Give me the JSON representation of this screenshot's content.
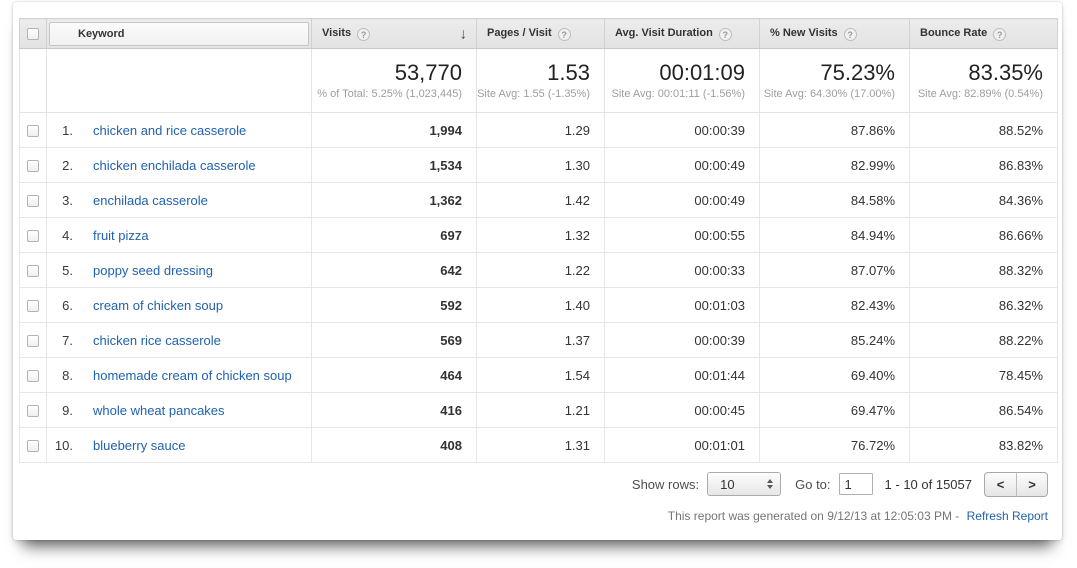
{
  "colors": {
    "link_blue": "#2062b0",
    "header_bg": "#e6e6e6"
  },
  "table": {
    "columns": {
      "keyword": {
        "label": "Keyword"
      },
      "visits": {
        "label": "Visits"
      },
      "pages_visit": {
        "label": "Pages / Visit"
      },
      "avg_duration": {
        "label": "Avg. Visit Duration"
      },
      "new_visits": {
        "label": "% New Visits"
      },
      "bounce_rate": {
        "label": "Bounce Rate"
      }
    },
    "sort": {
      "column": "Visits",
      "direction": "descending"
    },
    "summary": {
      "visits": "53,770",
      "visits_sub": "% of Total: 5.25% (1,023,445)",
      "pages_visit": "1.53",
      "pages_visit_sub": "Site Avg: 1.55 (-1.35%)",
      "avg_duration": "00:01:09",
      "avg_duration_sub": "Site Avg: 00:01:11 (-1.56%)",
      "new_visits": "75.23%",
      "new_visits_sub": "Site Avg: 64.30% (17.00%)",
      "bounce_rate": "83.35%",
      "bounce_rate_sub": "Site Avg: 82.89% (0.54%)"
    },
    "rows": [
      {
        "rank": "1.",
        "keyword": "chicken and rice casserole",
        "visits": "1,994",
        "pages_visit": "1.29",
        "avg_duration": "00:00:39",
        "new_visits": "87.86%",
        "bounce_rate": "88.52%"
      },
      {
        "rank": "2.",
        "keyword": "chicken enchilada casserole",
        "visits": "1,534",
        "pages_visit": "1.30",
        "avg_duration": "00:00:49",
        "new_visits": "82.99%",
        "bounce_rate": "86.83%"
      },
      {
        "rank": "3.",
        "keyword": "enchilada casserole",
        "visits": "1,362",
        "pages_visit": "1.42",
        "avg_duration": "00:00:49",
        "new_visits": "84.58%",
        "bounce_rate": "84.36%"
      },
      {
        "rank": "4.",
        "keyword": "fruit pizza",
        "visits": "697",
        "pages_visit": "1.32",
        "avg_duration": "00:00:55",
        "new_visits": "84.94%",
        "bounce_rate": "86.66%"
      },
      {
        "rank": "5.",
        "keyword": "poppy seed dressing",
        "visits": "642",
        "pages_visit": "1.22",
        "avg_duration": "00:00:33",
        "new_visits": "87.07%",
        "bounce_rate": "88.32%"
      },
      {
        "rank": "6.",
        "keyword": "cream of chicken soup",
        "visits": "592",
        "pages_visit": "1.40",
        "avg_duration": "00:01:03",
        "new_visits": "82.43%",
        "bounce_rate": "86.32%"
      },
      {
        "rank": "7.",
        "keyword": "chicken rice casserole",
        "visits": "569",
        "pages_visit": "1.37",
        "avg_duration": "00:00:39",
        "new_visits": "85.24%",
        "bounce_rate": "88.22%"
      },
      {
        "rank": "8.",
        "keyword": "homemade cream of chicken soup",
        "visits": "464",
        "pages_visit": "1.54",
        "avg_duration": "00:01:44",
        "new_visits": "69.40%",
        "bounce_rate": "78.45%"
      },
      {
        "rank": "9.",
        "keyword": "whole wheat pancakes",
        "visits": "416",
        "pages_visit": "1.21",
        "avg_duration": "00:00:45",
        "new_visits": "69.47%",
        "bounce_rate": "86.54%"
      },
      {
        "rank": "10.",
        "keyword": "blueberry sauce",
        "visits": "408",
        "pages_visit": "1.31",
        "avg_duration": "00:01:01",
        "new_visits": "76.72%",
        "bounce_rate": "83.82%"
      }
    ]
  },
  "footer": {
    "show_rows_label": "Show rows:",
    "show_rows_value": "10",
    "goto_label": "Go to:",
    "goto_value": "1",
    "range_text": "1 - 10 of 15057",
    "generated_text": "This report was generated on 9/12/13 at 12:05:03 PM -",
    "refresh_link": "Refresh Report"
  }
}
